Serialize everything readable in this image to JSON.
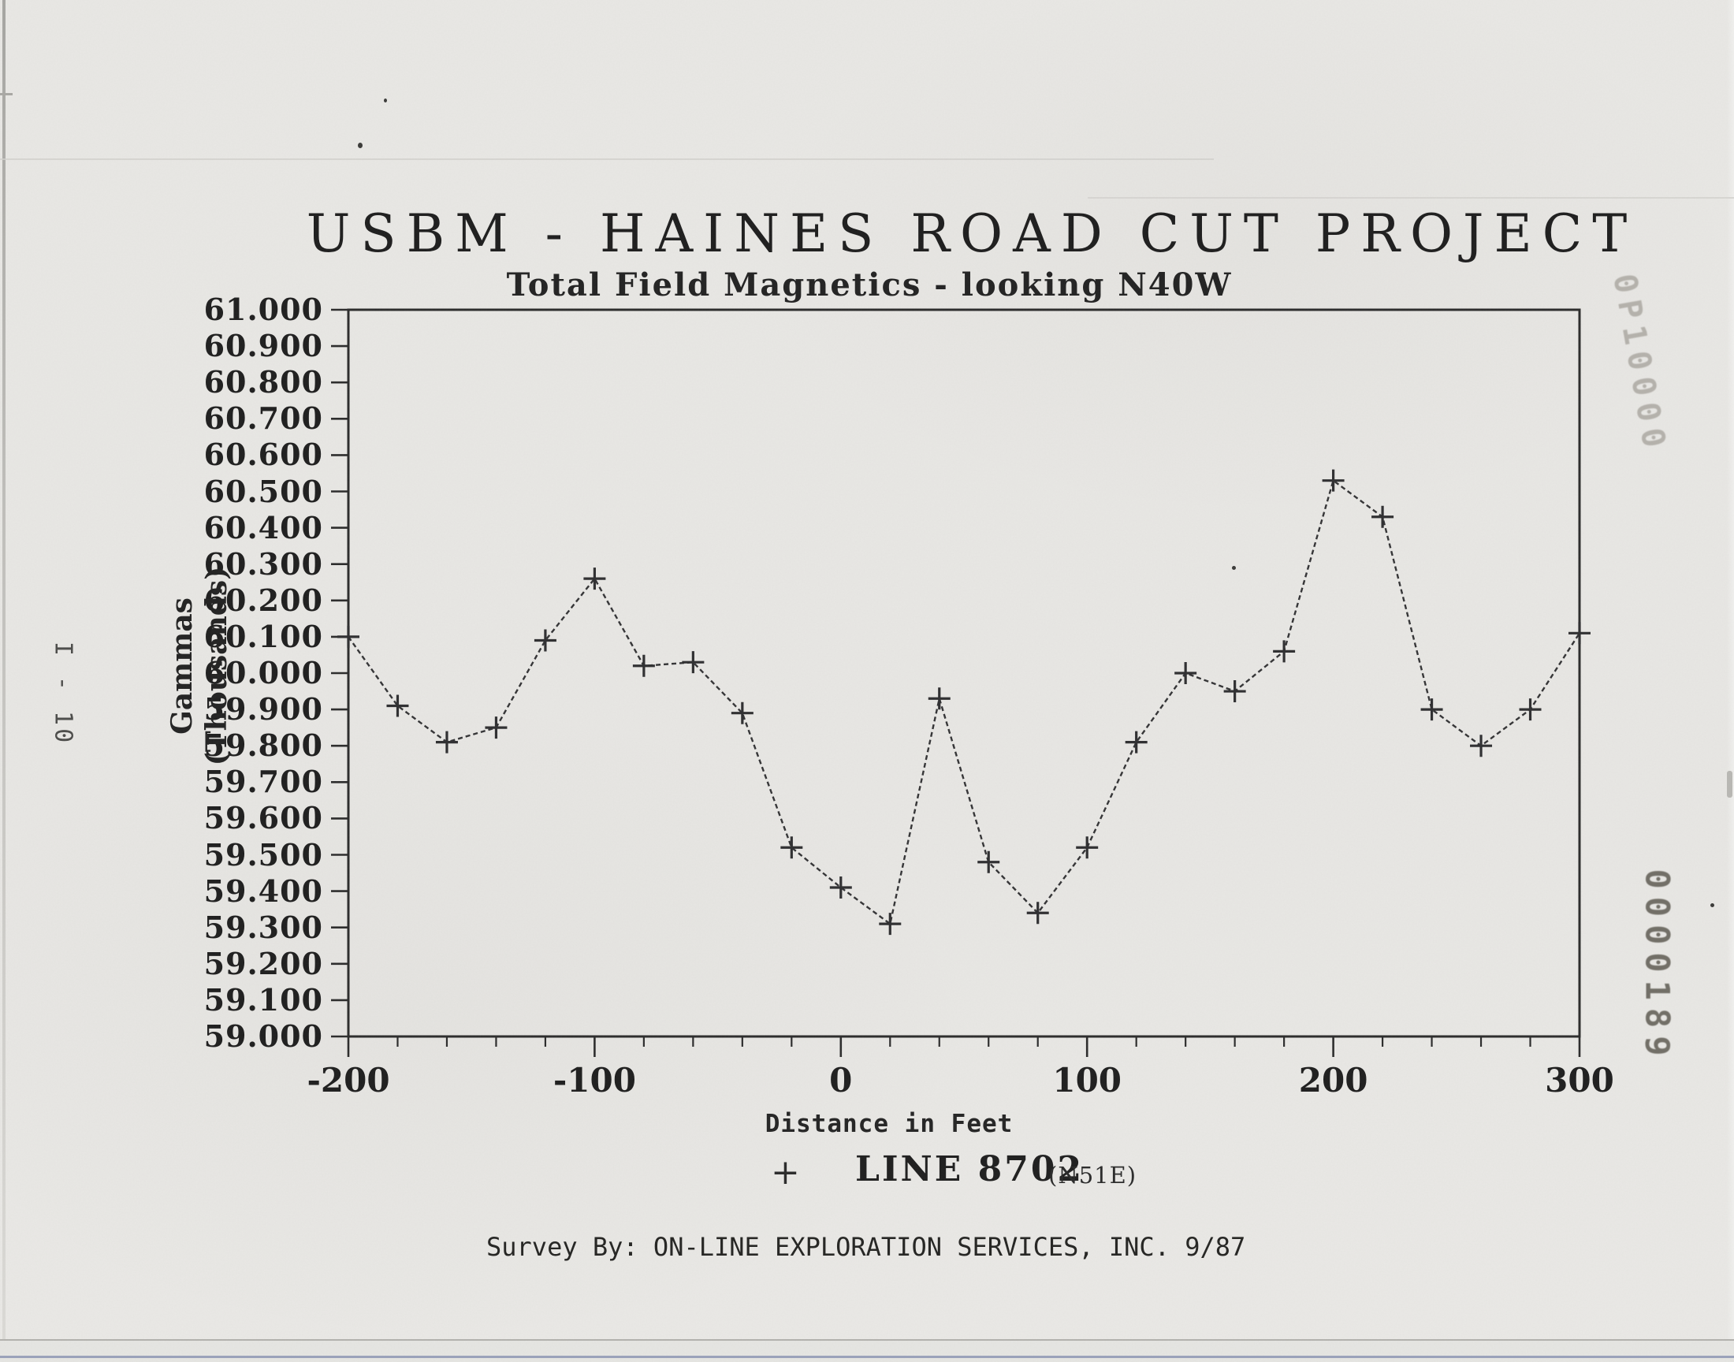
{
  "header": {
    "title": "USBM - HAINES ROAD CUT PROJECT",
    "subtitle": "Total Field Magnetics - looking N40W"
  },
  "axes": {
    "y_label_line1": "Gammas",
    "y_label_line2": "(Thousands)",
    "x_label": "Distance in Feet",
    "y_tick_labels": [
      "61.000",
      "60.900",
      "60.800",
      "60.700",
      "60.600",
      "60.500",
      "60.400",
      "60.300",
      "60.200",
      "60.100",
      "60.000",
      "59.900",
      "59.800",
      "59.700",
      "59.600",
      "59.500",
      "59.400",
      "59.300",
      "59.200",
      "59.100",
      "59.000"
    ],
    "x_tick_labels": [
      "-200",
      "-100",
      "0",
      "100",
      "200",
      "300"
    ]
  },
  "legend": {
    "marker": "+",
    "label": "LINE 8702",
    "sublabel": "(N51E)"
  },
  "page": {
    "side_label": "I - 10",
    "footer": "Survey By:  ON-LINE EXPLORATION SERVICES, INC.  9/87",
    "stamp_top": "0P10000",
    "stamp_bottom": "0000189"
  },
  "chart_data": {
    "type": "line",
    "title": "USBM - HAINES ROAD CUT PROJECT",
    "subtitle": "Total Field Magnetics - looking N40W",
    "xlabel": "Distance in Feet",
    "ylabel": "Gammas (Thousands)",
    "series_name": "LINE 8702 (N51E)",
    "marker": "plus",
    "line_style": "dashed",
    "grid": false,
    "xlim": [
      -200,
      300
    ],
    "ylim": [
      59.0,
      61.0
    ],
    "x_major_step": 100,
    "x_minor_step": 20,
    "y_tick_step": 0.1,
    "x": [
      -200,
      -180,
      -160,
      -140,
      -120,
      -100,
      -80,
      -60,
      -40,
      -20,
      0,
      20,
      40,
      60,
      80,
      100,
      120,
      140,
      160,
      180,
      200,
      220,
      240,
      260,
      280,
      300
    ],
    "values": [
      60.1,
      59.91,
      59.81,
      59.85,
      60.09,
      60.26,
      60.02,
      60.03,
      59.89,
      59.52,
      59.41,
      59.31,
      59.93,
      59.48,
      59.34,
      59.52,
      59.81,
      60.0,
      59.95,
      60.06,
      60.53,
      60.43,
      59.9,
      59.8,
      59.9,
      60.11
    ],
    "ink_color": "#333335",
    "frame_color": "#2b2b2b"
  }
}
